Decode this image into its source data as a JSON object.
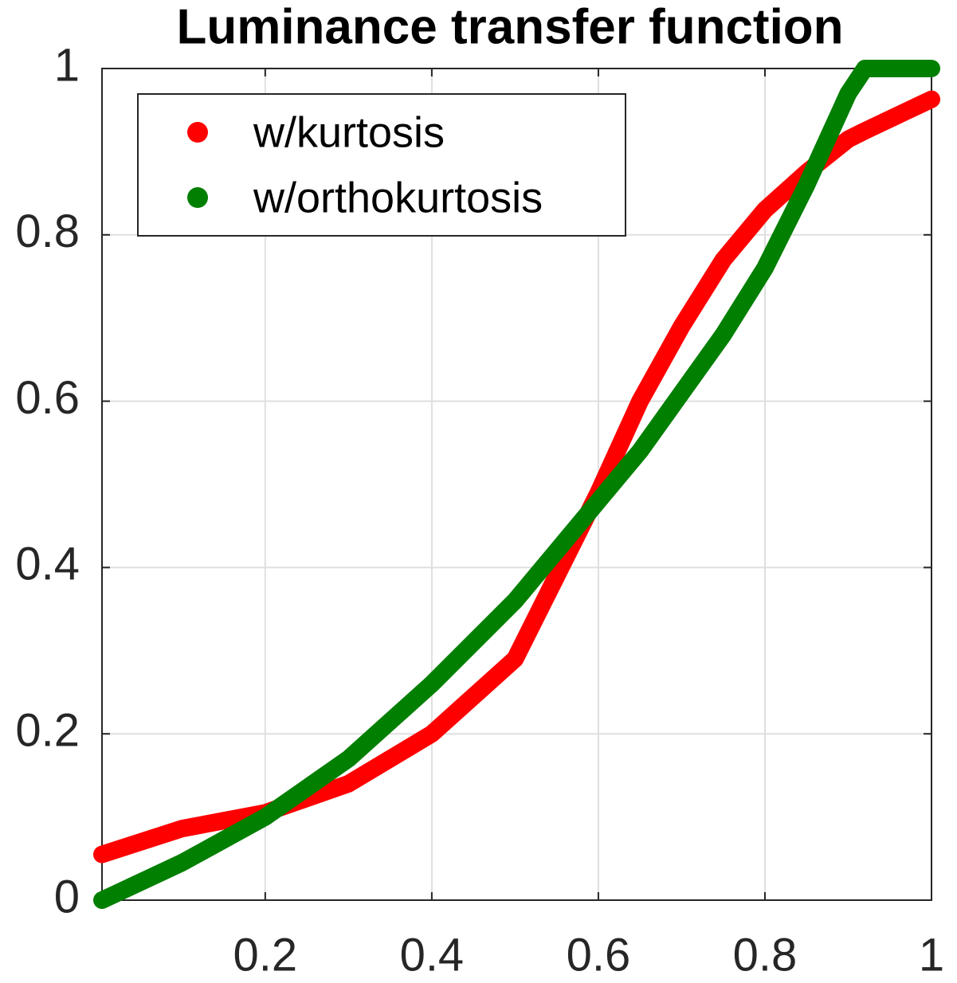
{
  "chart_data": {
    "type": "line",
    "title": "Luminance transfer function",
    "x": [
      0.004,
      0.1,
      0.2,
      0.3,
      0.4,
      0.5,
      0.6,
      0.65,
      0.7,
      0.75,
      0.8,
      0.85,
      0.9,
      0.92,
      1
    ],
    "series": [
      {
        "name": "w/kurtosis",
        "color": "#ff0000",
        "values": [
          0.055,
          0.086,
          0.105,
          0.14,
          0.2,
          0.29,
          0.49,
          0.6,
          0.69,
          0.77,
          0.83,
          0.875,
          0.915,
          0.925,
          0.963
        ]
      },
      {
        "name": "w/orthokurtosis",
        "color": "#007f00",
        "values": [
          0,
          0.045,
          0.1,
          0.17,
          0.26,
          0.36,
          0.48,
          0.54,
          0.61,
          0.68,
          0.76,
          0.86,
          0.97,
          1.0,
          1.0
        ]
      }
    ],
    "xlim": [
      0.004,
      1
    ],
    "ylim": [
      0,
      1
    ],
    "xticks": [
      0.2,
      0.4,
      0.6,
      0.8,
      1
    ],
    "yticks": [
      0,
      0.2,
      0.4,
      0.6,
      0.8,
      1
    ],
    "grid": true,
    "legend": "upper left"
  }
}
